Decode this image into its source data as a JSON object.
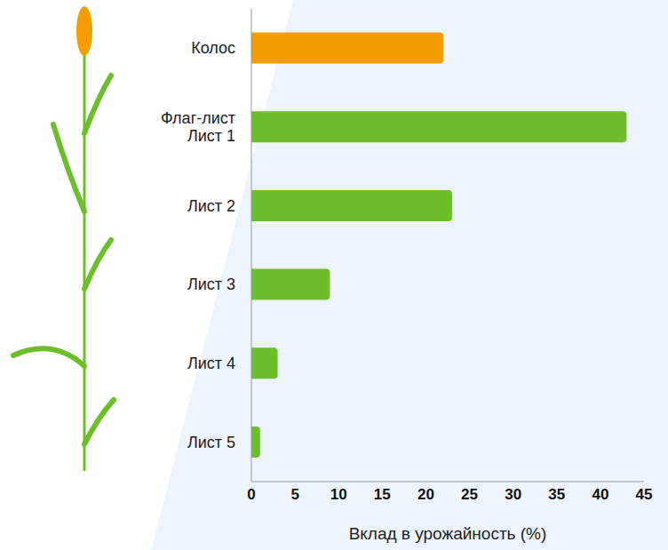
{
  "chart_data": {
    "type": "bar",
    "orientation": "horizontal",
    "categories": [
      "Колос",
      "Флаг-лист\nЛист 1",
      "Лист 2",
      "Лист 3",
      "Лист 4",
      "Лист 5"
    ],
    "values": [
      22,
      43,
      23,
      9,
      3,
      1
    ],
    "colors": [
      "#f59c00",
      "#6cbf2a",
      "#6cbf2a",
      "#6cbf2a",
      "#6cbf2a",
      "#6cbf2a"
    ],
    "xlabel": "Вклад в урожайность (%)",
    "xlim": [
      0,
      45
    ],
    "xticks": [
      0,
      5,
      10,
      15,
      20,
      25,
      30,
      35,
      40,
      45
    ],
    "grid": false
  }
}
